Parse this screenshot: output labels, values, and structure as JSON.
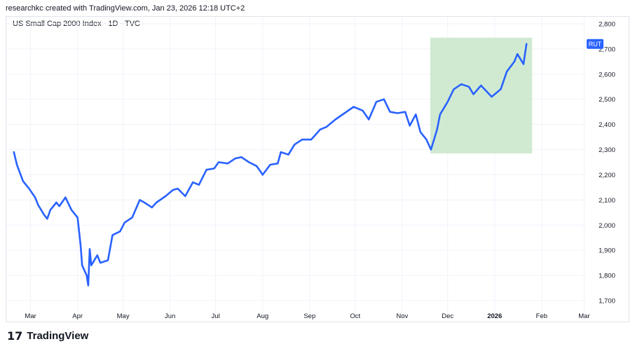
{
  "header": {
    "credit": "researchkc created with TradingView.com, Jan 23, 2026 12:18 UTC+2",
    "series_title": "US Small Cap 2000 Index · 1D · TVC"
  },
  "footer": {
    "logo_mark": "17",
    "brand": "TradingView"
  },
  "colors": {
    "line": "#2962ff",
    "highlight": "#c8e6c9",
    "grid": "#f0f3fa",
    "tag_bg": "#2962ff"
  },
  "chart_data": {
    "type": "line",
    "series": [
      {
        "name": "RUT",
        "x": [
          "2025-02-18",
          "2025-02-20",
          "2025-02-24",
          "2025-02-26",
          "2025-02-28",
          "2025-03-04",
          "2025-03-06",
          "2025-03-10",
          "2025-03-12",
          "2025-03-14",
          "2025-03-18",
          "2025-03-20",
          "2025-03-24",
          "2025-03-26",
          "2025-03-28",
          "2025-04-01",
          "2025-04-03",
          "2025-04-04",
          "2025-04-07",
          "2025-04-08",
          "2025-04-09",
          "2025-04-10",
          "2025-04-14",
          "2025-04-16",
          "2025-04-21",
          "2025-04-24",
          "2025-04-29",
          "2025-05-02",
          "2025-05-07",
          "2025-05-12",
          "2025-05-15",
          "2025-05-20",
          "2025-05-23",
          "2025-05-29",
          "2025-06-03",
          "2025-06-06",
          "2025-06-11",
          "2025-06-16",
          "2025-06-20",
          "2025-06-25",
          "2025-06-30",
          "2025-07-03",
          "2025-07-09",
          "2025-07-14",
          "2025-07-18",
          "2025-07-23",
          "2025-07-28",
          "2025-07-31",
          "2025-08-01",
          "2025-08-06",
          "2025-08-11",
          "2025-08-13",
          "2025-08-18",
          "2025-08-22",
          "2025-08-27",
          "2025-09-02",
          "2025-09-08",
          "2025-09-12",
          "2025-09-18",
          "2025-09-24",
          "2025-09-30",
          "2025-10-06",
          "2025-10-10",
          "2025-10-15",
          "2025-10-20",
          "2025-10-24",
          "2025-10-29",
          "2025-11-03",
          "2025-11-06",
          "2025-11-10",
          "2025-11-13",
          "2025-11-17",
          "2025-11-20",
          "2025-11-24",
          "2025-11-26",
          "2025-12-01",
          "2025-12-05",
          "2025-12-10",
          "2025-12-15",
          "2025-12-18",
          "2025-12-23",
          "2025-12-30",
          "2026-01-05",
          "2026-01-09",
          "2026-01-14",
          "2026-01-16",
          "2026-01-20",
          "2026-01-22"
        ],
        "y": [
          2290,
          2240,
          2175,
          2160,
          2145,
          2110,
          2080,
          2040,
          2025,
          2060,
          2090,
          2075,
          2110,
          2085,
          2060,
          2030,
          1920,
          1840,
          1800,
          1760,
          1905,
          1840,
          1880,
          1850,
          1860,
          1960,
          1975,
          2010,
          2030,
          2100,
          2090,
          2070,
          2090,
          2115,
          2140,
          2145,
          2115,
          2170,
          2160,
          2220,
          2225,
          2250,
          2245,
          2265,
          2270,
          2250,
          2235,
          2210,
          2200,
          2240,
          2245,
          2290,
          2280,
          2320,
          2340,
          2340,
          2380,
          2390,
          2420,
          2445,
          2470,
          2455,
          2420,
          2490,
          2500,
          2450,
          2445,
          2450,
          2395,
          2440,
          2370,
          2340,
          2300,
          2380,
          2440,
          2490,
          2540,
          2560,
          2550,
          2520,
          2555,
          2510,
          2540,
          2610,
          2650,
          2680,
          2640,
          2720
        ]
      }
    ],
    "ylim": [
      1700,
      2800
    ],
    "yticks": [
      "2,800",
      "2,700",
      "2,600",
      "2,500",
      "2,400",
      "2,300",
      "2,200",
      "2,100",
      "2,000",
      "1,900",
      "1,800",
      "1,700"
    ],
    "xticks": [
      "Mar",
      "Apr",
      "May",
      "Jun",
      "Jul",
      "Aug",
      "Sep",
      "Oct",
      "Nov",
      "Dec",
      "2026",
      "Feb",
      "Mar"
    ],
    "highlight": {
      "x_start": "2025-11-20",
      "x_end": "2026-01-22",
      "y_low": 2285,
      "y_high": 2745
    },
    "last_label": "RUT",
    "grid": true,
    "legend": "none"
  }
}
